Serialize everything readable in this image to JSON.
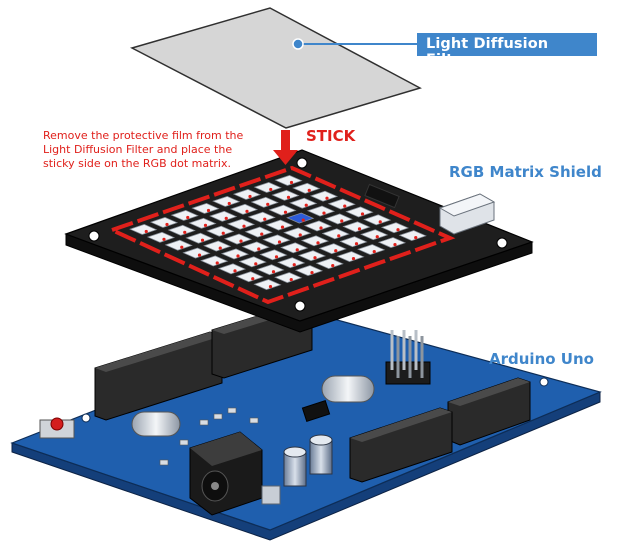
{
  "labels": {
    "filter": "Light Diffusion Filter",
    "shield": "RGB Matrix Shield",
    "arduino": "Arduino Uno",
    "stick": "STICK",
    "instruction": "Remove the protective film from the Light Diffusion Filter and place the sticky side on the RGB dot matrix."
  },
  "colors": {
    "label_blue": "#3f86cb",
    "instruction_red": "#e0201b",
    "filter_fill": "#d6d6d6",
    "shield_pcb": "#1e1e1e",
    "arduino_pcb": "#1f5fae",
    "led_frame": "#e0201b"
  },
  "matrix": {
    "rows": 8,
    "cols": 8
  }
}
